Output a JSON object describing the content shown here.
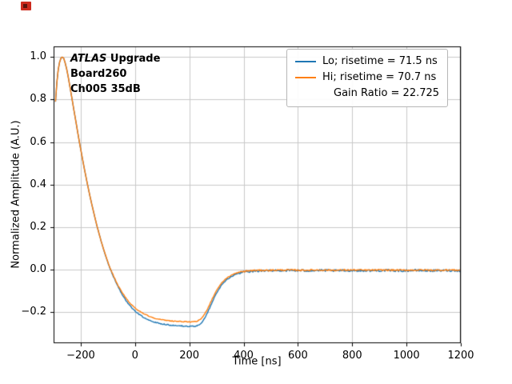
{
  "figure": {
    "background": "#ffffff",
    "corner_marker_color": "#cc2a1d"
  },
  "chart_data": {
    "type": "line",
    "title": "",
    "xlabel": "Time [ns]",
    "ylabel": "Normalized Amplitude (A.U.)",
    "xlim": [
      -300,
      1200
    ],
    "ylim": [
      -0.345,
      1.05
    ],
    "grid": true,
    "grid_color": "#c9c9c9",
    "xticks": [
      -200,
      0,
      200,
      400,
      600,
      800,
      1000,
      1200
    ],
    "xtick_labels": [
      "−200",
      "0",
      "200",
      "400",
      "600",
      "800",
      "1000",
      "1200"
    ],
    "yticks": [
      -0.2,
      0.0,
      0.2,
      0.4,
      0.6,
      0.8,
      1.0
    ],
    "ytick_labels": [
      "−0.2",
      "0.0",
      "0.2",
      "0.4",
      "0.6",
      "0.8",
      "1.0"
    ],
    "annotation": {
      "line1_italic": "ATLAS",
      "line1_bold": " Upgrade",
      "line2": "Board260",
      "line3": "Ch005 35dB"
    },
    "legend": {
      "position": "upper right",
      "entries": [
        {
          "label": "Lo; risetime = 71.5 ns",
          "color": "#1f77b4"
        },
        {
          "label": "Hi; risetime = 70.7 ns",
          "sublabel": "Gain Ratio = 22.725",
          "color": "#ff7f0e"
        }
      ]
    },
    "series": [
      {
        "name": "Lo",
        "color": "#1f77b4",
        "noise": 0.005,
        "points": [
          [
            -293,
            0.79
          ],
          [
            -288,
            0.88
          ],
          [
            -283,
            0.94
          ],
          [
            -278,
            0.975
          ],
          [
            -273,
            0.995
          ],
          [
            -268,
            1.0
          ],
          [
            -263,
            0.995
          ],
          [
            -258,
            0.975
          ],
          [
            -252,
            0.945
          ],
          [
            -246,
            0.905
          ],
          [
            -240,
            0.862
          ],
          [
            -233,
            0.81
          ],
          [
            -226,
            0.757
          ],
          [
            -219,
            0.705
          ],
          [
            -212,
            0.652
          ],
          [
            -205,
            0.6
          ],
          [
            -197,
            0.545
          ],
          [
            -189,
            0.49
          ],
          [
            -181,
            0.438
          ],
          [
            -173,
            0.388
          ],
          [
            -165,
            0.34
          ],
          [
            -157,
            0.295
          ],
          [
            -149,
            0.252
          ],
          [
            -141,
            0.21
          ],
          [
            -133,
            0.172
          ],
          [
            -125,
            0.135
          ],
          [
            -117,
            0.1
          ],
          [
            -109,
            0.068
          ],
          [
            -101,
            0.038
          ],
          [
            -93,
            0.01
          ],
          [
            -85,
            -0.016
          ],
          [
            -77,
            -0.04
          ],
          [
            -69,
            -0.063
          ],
          [
            -61,
            -0.084
          ],
          [
            -53,
            -0.103
          ],
          [
            -45,
            -0.121
          ],
          [
            -37,
            -0.137
          ],
          [
            -29,
            -0.152
          ],
          [
            -21,
            -0.165
          ],
          [
            -13,
            -0.177
          ],
          [
            -5,
            -0.188
          ],
          [
            5,
            -0.199
          ],
          [
            15,
            -0.209
          ],
          [
            25,
            -0.218
          ],
          [
            35,
            -0.226
          ],
          [
            45,
            -0.232
          ],
          [
            55,
            -0.238
          ],
          [
            65,
            -0.243
          ],
          [
            75,
            -0.247
          ],
          [
            85,
            -0.25
          ],
          [
            95,
            -0.253
          ],
          [
            110,
            -0.256
          ],
          [
            125,
            -0.259
          ],
          [
            140,
            -0.261
          ],
          [
            155,
            -0.263
          ],
          [
            170,
            -0.264
          ],
          [
            185,
            -0.265
          ],
          [
            200,
            -0.266
          ],
          [
            210,
            -0.266
          ],
          [
            220,
            -0.265
          ],
          [
            228,
            -0.263
          ],
          [
            236,
            -0.258
          ],
          [
            243,
            -0.251
          ],
          [
            250,
            -0.24
          ],
          [
            257,
            -0.226
          ],
          [
            264,
            -0.209
          ],
          [
            271,
            -0.19
          ],
          [
            278,
            -0.17
          ],
          [
            285,
            -0.15
          ],
          [
            292,
            -0.131
          ],
          [
            299,
            -0.113
          ],
          [
            306,
            -0.097
          ],
          [
            313,
            -0.083
          ],
          [
            320,
            -0.071
          ],
          [
            330,
            -0.056
          ],
          [
            340,
            -0.044
          ],
          [
            350,
            -0.035
          ],
          [
            360,
            -0.028
          ],
          [
            372,
            -0.021
          ],
          [
            384,
            -0.016
          ],
          [
            396,
            -0.012
          ],
          [
            410,
            -0.009
          ],
          [
            425,
            -0.007
          ],
          [
            440,
            -0.006
          ],
          [
            460,
            -0.005
          ],
          [
            500,
            -0.004
          ],
          [
            560,
            -0.003
          ],
          [
            620,
            -0.004
          ],
          [
            680,
            -0.003
          ],
          [
            740,
            -0.004
          ],
          [
            800,
            -0.003
          ],
          [
            860,
            -0.004
          ],
          [
            920,
            -0.003
          ],
          [
            980,
            -0.004
          ],
          [
            1040,
            -0.003
          ],
          [
            1100,
            -0.004
          ],
          [
            1160,
            -0.003
          ],
          [
            1200,
            -0.004
          ]
        ]
      },
      {
        "name": "Hi",
        "color": "#ff7f0e",
        "noise": 0.0035,
        "points": [
          [
            -293,
            0.79
          ],
          [
            -288,
            0.88
          ],
          [
            -283,
            0.94
          ],
          [
            -278,
            0.975
          ],
          [
            -273,
            0.995
          ],
          [
            -268,
            1.0
          ],
          [
            -263,
            0.995
          ],
          [
            -258,
            0.975
          ],
          [
            -252,
            0.945
          ],
          [
            -246,
            0.905
          ],
          [
            -240,
            0.862
          ],
          [
            -233,
            0.81
          ],
          [
            -226,
            0.757
          ],
          [
            -219,
            0.705
          ],
          [
            -212,
            0.652
          ],
          [
            -205,
            0.6
          ],
          [
            -197,
            0.545
          ],
          [
            -189,
            0.49
          ],
          [
            -181,
            0.438
          ],
          [
            -173,
            0.388
          ],
          [
            -165,
            0.34
          ],
          [
            -157,
            0.295
          ],
          [
            -149,
            0.252
          ],
          [
            -141,
            0.21
          ],
          [
            -133,
            0.172
          ],
          [
            -125,
            0.135
          ],
          [
            -117,
            0.102
          ],
          [
            -109,
            0.07
          ],
          [
            -101,
            0.04
          ],
          [
            -93,
            0.012
          ],
          [
            -85,
            -0.012
          ],
          [
            -77,
            -0.035
          ],
          [
            -69,
            -0.057
          ],
          [
            -61,
            -0.077
          ],
          [
            -53,
            -0.095
          ],
          [
            -45,
            -0.112
          ],
          [
            -37,
            -0.127
          ],
          [
            -29,
            -0.141
          ],
          [
            -21,
            -0.153
          ],
          [
            -13,
            -0.164
          ],
          [
            -5,
            -0.174
          ],
          [
            5,
            -0.184
          ],
          [
            15,
            -0.193
          ],
          [
            25,
            -0.201
          ],
          [
            35,
            -0.208
          ],
          [
            45,
            -0.214
          ],
          [
            55,
            -0.22
          ],
          [
            65,
            -0.224
          ],
          [
            75,
            -0.228
          ],
          [
            85,
            -0.231
          ],
          [
            95,
            -0.234
          ],
          [
            110,
            -0.237
          ],
          [
            125,
            -0.239
          ],
          [
            140,
            -0.241
          ],
          [
            155,
            -0.242
          ],
          [
            170,
            -0.243
          ],
          [
            185,
            -0.244
          ],
          [
            200,
            -0.245
          ],
          [
            210,
            -0.245
          ],
          [
            220,
            -0.244
          ],
          [
            228,
            -0.242
          ],
          [
            236,
            -0.237
          ],
          [
            243,
            -0.23
          ],
          [
            250,
            -0.22
          ],
          [
            257,
            -0.207
          ],
          [
            264,
            -0.191
          ],
          [
            271,
            -0.173
          ],
          [
            278,
            -0.154
          ],
          [
            285,
            -0.135
          ],
          [
            292,
            -0.117
          ],
          [
            299,
            -0.1
          ],
          [
            306,
            -0.085
          ],
          [
            313,
            -0.072
          ],
          [
            320,
            -0.061
          ],
          [
            330,
            -0.047
          ],
          [
            340,
            -0.037
          ],
          [
            350,
            -0.029
          ],
          [
            360,
            -0.022
          ],
          [
            372,
            -0.016
          ],
          [
            384,
            -0.012
          ],
          [
            396,
            -0.009
          ],
          [
            410,
            -0.006
          ],
          [
            425,
            -0.004
          ],
          [
            440,
            -0.003
          ],
          [
            500,
            -0.002
          ],
          [
            560,
            -0.001
          ],
          [
            620,
            -0.002
          ],
          [
            680,
            -0.001
          ],
          [
            740,
            -0.002
          ],
          [
            800,
            -0.001
          ],
          [
            860,
            -0.002
          ],
          [
            920,
            -0.001
          ],
          [
            980,
            -0.002
          ],
          [
            1040,
            -0.001
          ],
          [
            1100,
            -0.002
          ],
          [
            1160,
            -0.001
          ],
          [
            1200,
            -0.002
          ]
        ]
      }
    ]
  }
}
